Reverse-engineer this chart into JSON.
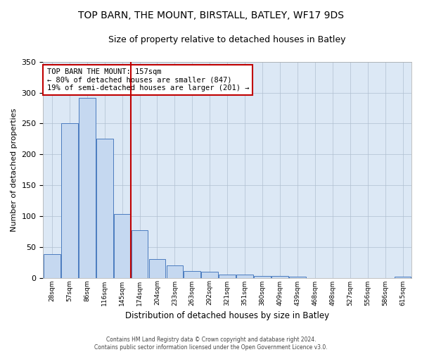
{
  "title": "TOP BARN, THE MOUNT, BIRSTALL, BATLEY, WF17 9DS",
  "subtitle": "Size of property relative to detached houses in Batley",
  "xlabel": "Distribution of detached houses by size in Batley",
  "ylabel": "Number of detached properties",
  "footer_line1": "Contains HM Land Registry data © Crown copyright and database right 2024.",
  "footer_line2": "Contains public sector information licensed under the Open Government Licence v3.0.",
  "annotation_title": "TOP BARN THE MOUNT: 157sqm",
  "annotation_line2": "← 80% of detached houses are smaller (847)",
  "annotation_line3": "19% of semi-detached houses are larger (201) →",
  "categories": [
    "28sqm",
    "57sqm",
    "86sqm",
    "116sqm",
    "145sqm",
    "174sqm",
    "204sqm",
    "233sqm",
    "263sqm",
    "292sqm",
    "321sqm",
    "351sqm",
    "380sqm",
    "409sqm",
    "439sqm",
    "468sqm",
    "498sqm",
    "527sqm",
    "556sqm",
    "586sqm",
    "615sqm"
  ],
  "values": [
    38,
    250,
    291,
    225,
    103,
    77,
    30,
    20,
    11,
    10,
    5,
    5,
    3,
    3,
    2,
    0,
    0,
    0,
    0,
    0,
    2
  ],
  "bar_color": "#c5d8f0",
  "bar_edge_color": "#4a7bbf",
  "vline_color": "#c00000",
  "vline_x_bin": 5,
  "ylim": [
    0,
    350
  ],
  "yticks": [
    0,
    50,
    100,
    150,
    200,
    250,
    300,
    350
  ],
  "grid_color": "#b0bfd0",
  "background_color": "#dce8f5",
  "title_fontsize": 10,
  "subtitle_fontsize": 9,
  "annotation_box_facecolor": "#ffffff",
  "annotation_box_edgecolor": "#c00000",
  "annotation_fontsize": 7.5,
  "xlabel_fontsize": 8.5,
  "ylabel_fontsize": 8,
  "xtick_fontsize": 6.5,
  "ytick_fontsize": 8,
  "footer_fontsize": 5.5
}
